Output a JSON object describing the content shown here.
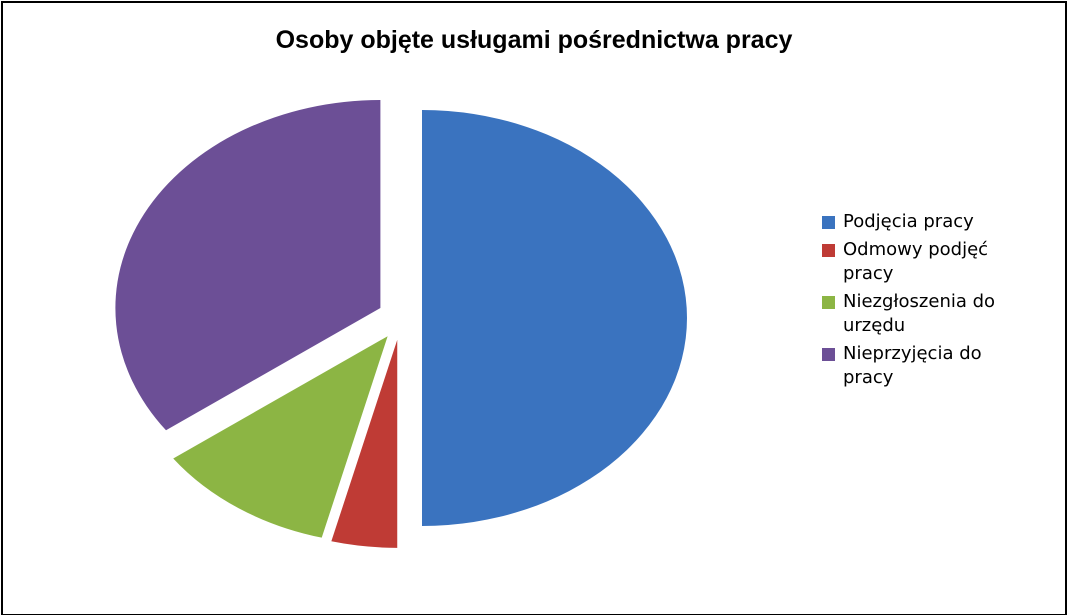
{
  "chart_data": {
    "type": "pie",
    "title": "Osoby objęte usługami pośrednictwa pracy",
    "categories": [
      "Podjęcia pracy",
      "Odmowy podjęć pracy",
      "Niezgłoszenia do urzędu",
      "Nieprzyjęcia do pracy"
    ],
    "values": [
      50,
      4,
      11,
      35
    ],
    "colors": [
      "#3a73bf",
      "#bf3b35",
      "#8cb544",
      "#6c4f96"
    ],
    "legend": "right"
  }
}
